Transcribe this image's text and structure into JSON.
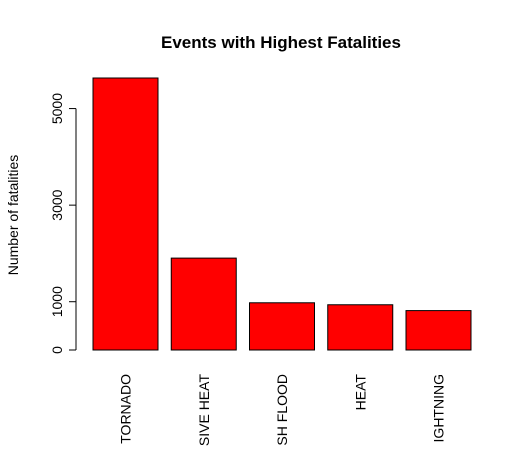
{
  "chart_data": {
    "type": "bar",
    "title": "Events with Highest Fatalities",
    "xlabel": "",
    "ylabel": "Number of fatalities",
    "categories": [
      "TORNADO",
      "EXCESSIVE HEAT",
      "FLASH FLOOD",
      "HEAT",
      "LIGHTNING"
    ],
    "category_labels_visible": [
      "TORNADO",
      "SIVE HEAT",
      "SH FLOOD",
      "HEAT",
      "IGHTNING"
    ],
    "values": [
      5633,
      1903,
      978,
      937,
      816
    ],
    "yticks": [
      0,
      1000,
      3000,
      5000
    ],
    "ylim": [
      0,
      5633
    ],
    "bar_color": "#ff0000",
    "bar_border_color": "#000000",
    "grid": false,
    "legend": "none"
  }
}
